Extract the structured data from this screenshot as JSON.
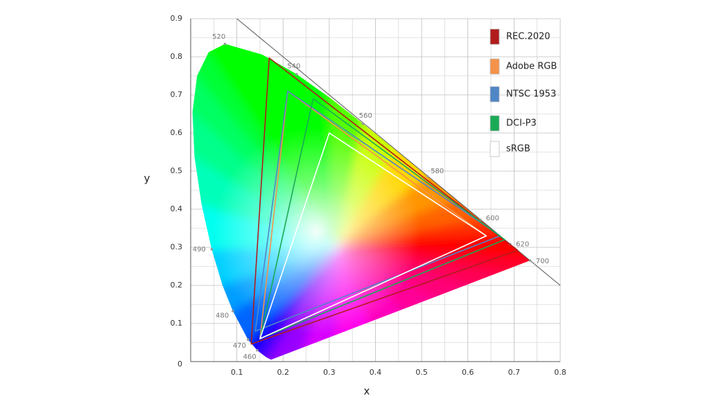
{
  "chart_data": {
    "type": "gamut",
    "xlabel": "x",
    "ylabel": "y",
    "xlim": [
      0,
      0.8
    ],
    "ylim": [
      0,
      0.9
    ],
    "xticks": [
      0.1,
      0.2,
      0.3,
      0.4,
      0.5,
      0.6,
      0.7,
      0.8
    ],
    "yticks": [
      0,
      0.1,
      0.2,
      0.3,
      0.4,
      0.5,
      0.6,
      0.7,
      0.8,
      0.9
    ],
    "grid": true,
    "legend": "upper right",
    "locus": {
      "x": [
        0.1741,
        0.1644,
        0.1566,
        0.144,
        0.1241,
        0.0913,
        0.0687,
        0.0454,
        0.0235,
        0.0082,
        0.0039,
        0.0139,
        0.0389,
        0.0743,
        0.1547,
        0.2296,
        0.3016,
        0.3731,
        0.4441,
        0.5125,
        0.5752,
        0.627,
        0.6658,
        0.6915,
        0.7347
      ],
      "y": [
        0.005,
        0.0109,
        0.0177,
        0.0297,
        0.0578,
        0.1327,
        0.2007,
        0.295,
        0.4127,
        0.5384,
        0.6548,
        0.7502,
        0.812,
        0.8338,
        0.8059,
        0.7543,
        0.6923,
        0.6245,
        0.5547,
        0.4866,
        0.4242,
        0.3725,
        0.334,
        0.3083,
        0.2653
      ]
    },
    "wavelength_labels": [
      {
        "label": "460",
        "x": 0.144,
        "y": 0.0297
      },
      {
        "label": "470",
        "x": 0.1241,
        "y": 0.0578
      },
      {
        "label": "480",
        "x": 0.0913,
        "y": 0.1327
      },
      {
        "label": "490",
        "x": 0.0454,
        "y": 0.295
      },
      {
        "label": "520",
        "x": 0.0743,
        "y": 0.8338
      },
      {
        "label": "540",
        "x": 0.2296,
        "y": 0.7543
      },
      {
        "label": "560",
        "x": 0.3731,
        "y": 0.6245
      },
      {
        "label": "580",
        "x": 0.5125,
        "y": 0.4866
      },
      {
        "label": "600",
        "x": 0.627,
        "y": 0.3725
      },
      {
        "label": "620",
        "x": 0.6915,
        "y": 0.3083
      },
      {
        "label": "700",
        "x": 0.7347,
        "y": 0.2653
      }
    ],
    "series": [
      {
        "name": "REC.2020",
        "color": "#b01c1c",
        "x": [
          0.708,
          0.17,
          0.131
        ],
        "values": [
          0.292,
          0.797,
          0.046
        ]
      },
      {
        "name": "Adobe RGB",
        "color": "#f5924a",
        "x": [
          0.64,
          0.21,
          0.15
        ],
        "values": [
          0.33,
          0.71,
          0.06
        ]
      },
      {
        "name": "NTSC 1953",
        "color": "#4f86c6",
        "x": [
          0.67,
          0.21,
          0.14
        ],
        "values": [
          0.33,
          0.71,
          0.08
        ]
      },
      {
        "name": "DCI-P3",
        "color": "#1aaa55",
        "x": [
          0.68,
          0.265,
          0.15
        ],
        "values": [
          0.32,
          0.69,
          0.06
        ]
      },
      {
        "name": "sRGB",
        "color": "#ffffff",
        "x": [
          0.64,
          0.3,
          0.15
        ],
        "values": [
          0.33,
          0.6,
          0.06
        ]
      }
    ]
  }
}
